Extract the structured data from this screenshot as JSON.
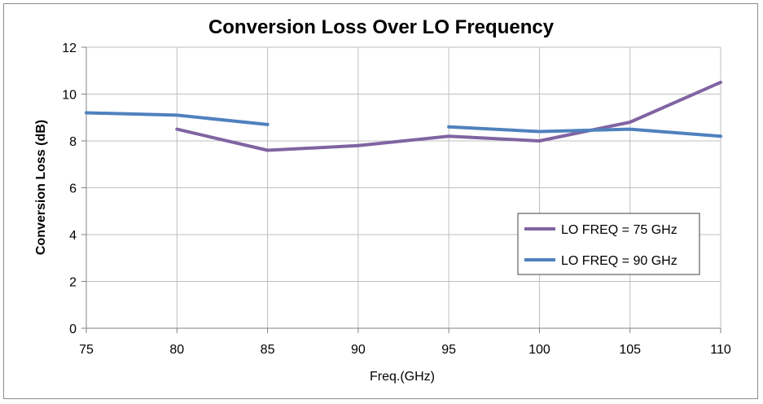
{
  "chart_data": {
    "type": "line",
    "title": "Conversion Loss Over LO Frequency",
    "xlabel": "Freq.(GHz)",
    "ylabel": "Conversion Loss (dB)",
    "xlim": [
      75,
      110
    ],
    "ylim": [
      0,
      12
    ],
    "x_ticks": [
      75,
      80,
      85,
      90,
      95,
      100,
      105,
      110
    ],
    "y_ticks": [
      0,
      2,
      4,
      6,
      8,
      10,
      12
    ],
    "grid": true,
    "legend_position": "right",
    "series": [
      {
        "name": "LO FREQ = 75 GHz",
        "color": "#8064a2",
        "x": [
          80,
          85,
          90,
          95,
          100,
          105,
          110
        ],
        "y": [
          8.5,
          7.6,
          7.8,
          8.2,
          8.0,
          8.8,
          10.5
        ]
      },
      {
        "name": "LO FREQ = 90 GHz",
        "color": "#4f81bd",
        "x": [
          75,
          80,
          85,
          95,
          100,
          105,
          110
        ],
        "y": [
          9.2,
          9.1,
          8.7,
          8.6,
          8.4,
          8.5,
          8.2
        ],
        "segments": [
          [
            0,
            2
          ],
          [
            3,
            6
          ]
        ]
      }
    ]
  }
}
